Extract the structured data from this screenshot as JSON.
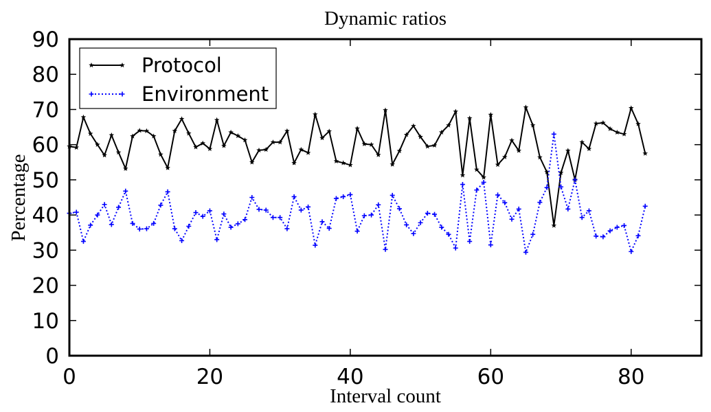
{
  "chart_data": {
    "type": "line",
    "title": "Dynamic ratios",
    "xlabel": "Interval count",
    "ylabel": "Percentage",
    "xlim": [
      0,
      90
    ],
    "ylim": [
      0,
      90
    ],
    "xticks": [
      0,
      20,
      40,
      60,
      80
    ],
    "yticks": [
      0,
      10,
      20,
      30,
      40,
      50,
      60,
      70,
      80,
      90
    ],
    "grid": false,
    "legend_position": "top-left",
    "series": [
      {
        "name": "Protocol",
        "color": "#000000",
        "line_style": "solid",
        "marker": "star",
        "x": [
          0,
          1,
          2,
          3,
          4,
          5,
          6,
          7,
          8,
          9,
          10,
          11,
          12,
          13,
          14,
          15,
          16,
          17,
          18,
          19,
          20,
          21,
          22,
          23,
          24,
          25,
          26,
          27,
          28,
          29,
          30,
          31,
          32,
          33,
          34,
          35,
          36,
          37,
          38,
          39,
          40,
          41,
          42,
          43,
          44,
          45,
          46,
          47,
          48,
          49,
          50,
          51,
          52,
          53,
          54,
          55,
          56,
          57,
          58,
          59,
          60,
          61,
          62,
          63,
          64,
          65,
          66,
          67,
          68,
          69,
          70,
          71,
          72,
          73,
          74,
          75,
          76,
          77,
          78,
          79,
          80,
          81,
          82
        ],
        "values": [
          59.5,
          59.2,
          67.8,
          63.1,
          60.0,
          57.0,
          62.7,
          57.8,
          53.2,
          62.4,
          64.0,
          63.9,
          62.4,
          57.2,
          53.4,
          63.9,
          67.3,
          63.2,
          59.3,
          60.4,
          58.8,
          67.0,
          59.7,
          63.5,
          62.5,
          61.3,
          55.0,
          58.4,
          58.6,
          60.7,
          60.7,
          63.9,
          54.8,
          58.6,
          57.7,
          68.6,
          61.9,
          63.8,
          55.3,
          54.8,
          54.2,
          64.6,
          60.2,
          60.0,
          57.1,
          69.8,
          54.4,
          58.2,
          62.8,
          65.3,
          62.2,
          59.5,
          59.8,
          63.5,
          65.5,
          69.4,
          51.3,
          67.5,
          52.9,
          50.7,
          68.5,
          54.3,
          56.5,
          61.2,
          58.3,
          70.6,
          65.5,
          56.4,
          52.2,
          37.0,
          52.0,
          58.3,
          50.0,
          60.7,
          58.8,
          66.0,
          66.2,
          64.5,
          63.5,
          63.0,
          70.4,
          65.9,
          57.5
        ]
      },
      {
        "name": "Environment",
        "color": "#0000ff",
        "line_style": "dotted",
        "marker": "plus",
        "x": [
          0,
          1,
          2,
          3,
          4,
          5,
          6,
          7,
          8,
          9,
          10,
          11,
          12,
          13,
          14,
          15,
          16,
          17,
          18,
          19,
          20,
          21,
          22,
          23,
          24,
          25,
          26,
          27,
          28,
          29,
          30,
          31,
          32,
          33,
          34,
          35,
          36,
          37,
          38,
          39,
          40,
          41,
          42,
          43,
          44,
          45,
          46,
          47,
          48,
          49,
          50,
          51,
          52,
          53,
          54,
          55,
          56,
          57,
          58,
          59,
          60,
          61,
          62,
          63,
          64,
          65,
          66,
          67,
          68,
          69,
          70,
          71,
          72,
          73,
          74,
          75,
          76,
          77,
          78,
          79,
          80,
          81,
          82
        ],
        "values": [
          40.5,
          40.8,
          32.5,
          37.1,
          40.0,
          43.0,
          37.3,
          42.2,
          46.8,
          37.6,
          36.0,
          36.1,
          37.6,
          42.8,
          46.6,
          36.1,
          32.7,
          36.8,
          40.7,
          39.6,
          41.2,
          33.0,
          40.3,
          36.5,
          37.5,
          38.7,
          45.0,
          41.6,
          41.4,
          39.3,
          39.3,
          36.1,
          45.2,
          41.4,
          42.3,
          31.4,
          38.1,
          36.2,
          44.7,
          45.2,
          45.8,
          35.4,
          39.8,
          40.0,
          42.9,
          30.2,
          45.6,
          41.8,
          37.2,
          34.7,
          37.8,
          40.5,
          40.2,
          36.5,
          34.5,
          30.6,
          48.7,
          32.5,
          47.1,
          49.3,
          31.5,
          45.7,
          43.5,
          38.8,
          41.7,
          29.4,
          34.5,
          43.6,
          47.8,
          63.0,
          48.0,
          41.7,
          50.0,
          39.3,
          41.2,
          34.0,
          33.8,
          35.5,
          36.5,
          37.0,
          29.6,
          34.1,
          42.5
        ]
      }
    ]
  }
}
